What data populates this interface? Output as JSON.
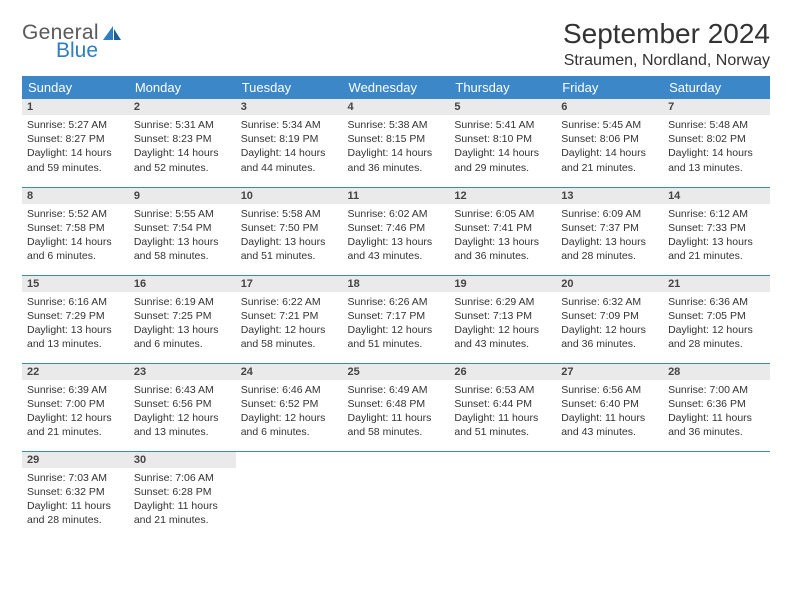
{
  "brand": {
    "word1": "General",
    "word2": "Blue",
    "accent": "#2f7ec0",
    "logo_text_color": "#5a5a5a"
  },
  "title": "September 2024",
  "location": "Straumen, Nordland, Norway",
  "colors": {
    "header_bg": "#3b87c8",
    "header_text": "#ffffff",
    "daynum_bg": "#eaeaea",
    "row_border": "#3b87c8",
    "body_text": "#333333",
    "page_bg": "#ffffff"
  },
  "fonts": {
    "title_size_pt": 21,
    "location_size_pt": 12,
    "dow_size_pt": 10,
    "daynum_size_pt": 8,
    "body_size_pt": 8
  },
  "days_of_week": [
    "Sunday",
    "Monday",
    "Tuesday",
    "Wednesday",
    "Thursday",
    "Friday",
    "Saturday"
  ],
  "weeks": [
    [
      {
        "n": "1",
        "sr": "5:27 AM",
        "ss": "8:27 PM",
        "dl": "14 hours and 59 minutes."
      },
      {
        "n": "2",
        "sr": "5:31 AM",
        "ss": "8:23 PM",
        "dl": "14 hours and 52 minutes."
      },
      {
        "n": "3",
        "sr": "5:34 AM",
        "ss": "8:19 PM",
        "dl": "14 hours and 44 minutes."
      },
      {
        "n": "4",
        "sr": "5:38 AM",
        "ss": "8:15 PM",
        "dl": "14 hours and 36 minutes."
      },
      {
        "n": "5",
        "sr": "5:41 AM",
        "ss": "8:10 PM",
        "dl": "14 hours and 29 minutes."
      },
      {
        "n": "6",
        "sr": "5:45 AM",
        "ss": "8:06 PM",
        "dl": "14 hours and 21 minutes."
      },
      {
        "n": "7",
        "sr": "5:48 AM",
        "ss": "8:02 PM",
        "dl": "14 hours and 13 minutes."
      }
    ],
    [
      {
        "n": "8",
        "sr": "5:52 AM",
        "ss": "7:58 PM",
        "dl": "14 hours and 6 minutes."
      },
      {
        "n": "9",
        "sr": "5:55 AM",
        "ss": "7:54 PM",
        "dl": "13 hours and 58 minutes."
      },
      {
        "n": "10",
        "sr": "5:58 AM",
        "ss": "7:50 PM",
        "dl": "13 hours and 51 minutes."
      },
      {
        "n": "11",
        "sr": "6:02 AM",
        "ss": "7:46 PM",
        "dl": "13 hours and 43 minutes."
      },
      {
        "n": "12",
        "sr": "6:05 AM",
        "ss": "7:41 PM",
        "dl": "13 hours and 36 minutes."
      },
      {
        "n": "13",
        "sr": "6:09 AM",
        "ss": "7:37 PM",
        "dl": "13 hours and 28 minutes."
      },
      {
        "n": "14",
        "sr": "6:12 AM",
        "ss": "7:33 PM",
        "dl": "13 hours and 21 minutes."
      }
    ],
    [
      {
        "n": "15",
        "sr": "6:16 AM",
        "ss": "7:29 PM",
        "dl": "13 hours and 13 minutes."
      },
      {
        "n": "16",
        "sr": "6:19 AM",
        "ss": "7:25 PM",
        "dl": "13 hours and 6 minutes."
      },
      {
        "n": "17",
        "sr": "6:22 AM",
        "ss": "7:21 PM",
        "dl": "12 hours and 58 minutes."
      },
      {
        "n": "18",
        "sr": "6:26 AM",
        "ss": "7:17 PM",
        "dl": "12 hours and 51 minutes."
      },
      {
        "n": "19",
        "sr": "6:29 AM",
        "ss": "7:13 PM",
        "dl": "12 hours and 43 minutes."
      },
      {
        "n": "20",
        "sr": "6:32 AM",
        "ss": "7:09 PM",
        "dl": "12 hours and 36 minutes."
      },
      {
        "n": "21",
        "sr": "6:36 AM",
        "ss": "7:05 PM",
        "dl": "12 hours and 28 minutes."
      }
    ],
    [
      {
        "n": "22",
        "sr": "6:39 AM",
        "ss": "7:00 PM",
        "dl": "12 hours and 21 minutes."
      },
      {
        "n": "23",
        "sr": "6:43 AM",
        "ss": "6:56 PM",
        "dl": "12 hours and 13 minutes."
      },
      {
        "n": "24",
        "sr": "6:46 AM",
        "ss": "6:52 PM",
        "dl": "12 hours and 6 minutes."
      },
      {
        "n": "25",
        "sr": "6:49 AM",
        "ss": "6:48 PM",
        "dl": "11 hours and 58 minutes."
      },
      {
        "n": "26",
        "sr": "6:53 AM",
        "ss": "6:44 PM",
        "dl": "11 hours and 51 minutes."
      },
      {
        "n": "27",
        "sr": "6:56 AM",
        "ss": "6:40 PM",
        "dl": "11 hours and 43 minutes."
      },
      {
        "n": "28",
        "sr": "7:00 AM",
        "ss": "6:36 PM",
        "dl": "11 hours and 36 minutes."
      }
    ],
    [
      {
        "n": "29",
        "sr": "7:03 AM",
        "ss": "6:32 PM",
        "dl": "11 hours and 28 minutes."
      },
      {
        "n": "30",
        "sr": "7:06 AM",
        "ss": "6:28 PM",
        "dl": "11 hours and 21 minutes."
      },
      null,
      null,
      null,
      null,
      null
    ]
  ],
  "labels": {
    "sunrise": "Sunrise:",
    "sunset": "Sunset:",
    "daylight": "Daylight:"
  }
}
